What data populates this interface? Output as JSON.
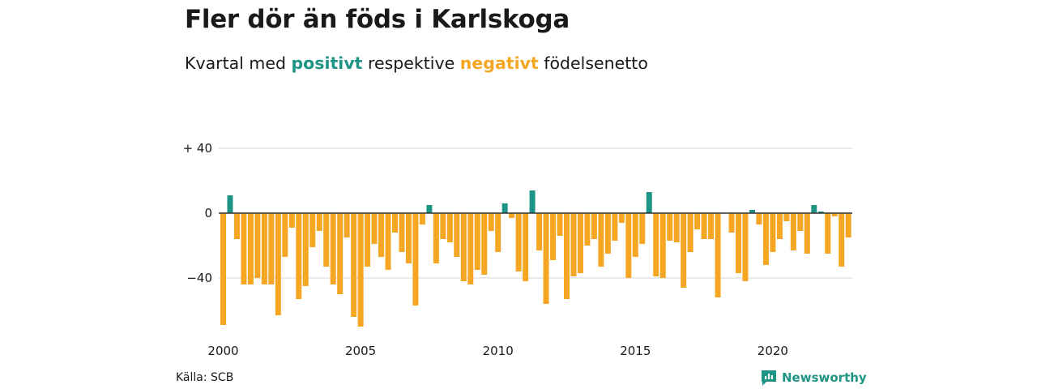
{
  "title": "Fler dör än föds i Karlskoga",
  "subtitle": {
    "prefix": "Kvartal med ",
    "positive_word": "positivt",
    "middle": " respektive ",
    "negative_word": "negativt",
    "suffix": " födelsenetto"
  },
  "source": "Källa: SCB",
  "brand": {
    "name": "Newsworthy",
    "icon": "newsworthy-logo-icon"
  },
  "colors": {
    "positive": "#1e9484",
    "negative": "#f5a623",
    "grid": "#dddddd",
    "zero": "#333333"
  },
  "chart_data": {
    "type": "bar",
    "y_tick_labels": [
      "+ 40",
      "0",
      "−40"
    ],
    "y_ticks": [
      40,
      0,
      -40
    ],
    "x_tick_labels": [
      "2000",
      "2005",
      "2010",
      "2015",
      "2020"
    ],
    "x_ticks": [
      2000,
      2005,
      2010,
      2015,
      2020
    ],
    "ylim": [
      -72,
      42
    ],
    "x_start": 2000,
    "quarters_per_year": 4,
    "grid": true,
    "values": [
      -69,
      11,
      -16,
      -44,
      -44,
      -40,
      -44,
      -44,
      -63,
      -27,
      -9,
      -53,
      -45,
      -21,
      -11,
      -33,
      -44,
      -50,
      -15,
      -64,
      -70,
      -33,
      -19,
      -27,
      -35,
      -12,
      -24,
      -31,
      -57,
      -7,
      5,
      -31,
      -16,
      -18,
      -27,
      -42,
      -44,
      -35,
      -38,
      -11,
      -24,
      6,
      -3,
      -36,
      -42,
      14,
      -23,
      -56,
      -29,
      -14,
      -53,
      -39,
      -37,
      -20,
      -16,
      -33,
      -25,
      -17,
      -6,
      -40,
      -27,
      -19,
      13,
      -39,
      -40,
      -17,
      -18,
      -46,
      -24,
      -10,
      -16,
      -16,
      -52,
      0,
      -12,
      -37,
      -42,
      2,
      -7,
      -32,
      -24,
      -16,
      -5,
      -23,
      -11,
      -25,
      5,
      1,
      -25,
      -2,
      -33,
      -15
    ]
  }
}
